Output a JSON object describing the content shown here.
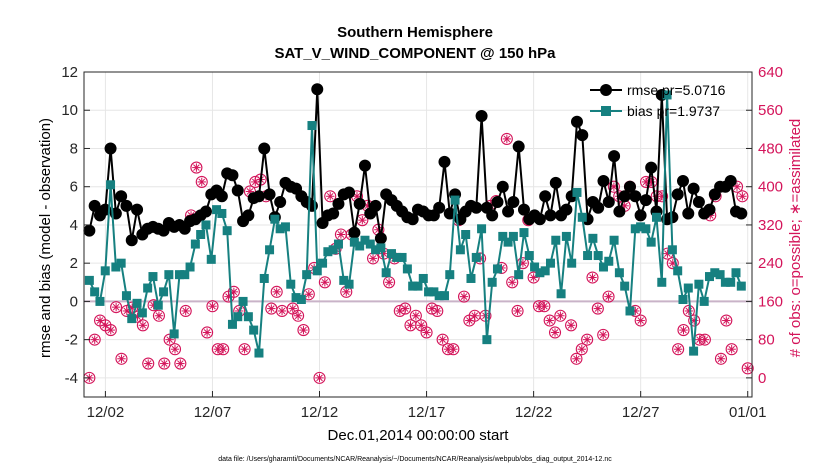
{
  "chart_data": {
    "type": "line",
    "title": [
      "Southern Hemisphere",
      "SAT_V_WIND_COMPONENT @ 150 hPa"
    ],
    "xlabel": "Dec.01,2014 00:00:00 start",
    "ylabel": "rmse and bias (model - observation)",
    "y2label": "# of obs: o=possible; ∗=assimilated",
    "footer": "data file: /Users/gharamti/Documents/NCAR/Reanalysis/~/Documents/NCAR/Reanalysis/webpub/obs_diag_output_2014-12.nc",
    "x_ticks": [
      "12/02",
      "12/07",
      "12/12",
      "12/17",
      "12/22",
      "12/27",
      "01/01"
    ],
    "x_tick_days": [
      2,
      7,
      12,
      17,
      22,
      27,
      32
    ],
    "xlim_days": [
      1.0,
      32.2
    ],
    "ylim": [
      -5,
      12
    ],
    "yticks": [
      -4,
      -2,
      0,
      2,
      4,
      6,
      8,
      10,
      12
    ],
    "y2lim": [
      -40,
      640
    ],
    "y2ticks": [
      0,
      80,
      160,
      240,
      320,
      400,
      480,
      560,
      640
    ],
    "grid": true,
    "zero_line": 0,
    "legend_position": "top-right",
    "colors": {
      "rmse": "#000000",
      "bias": "#168080",
      "obs": "#d4145a",
      "axis_right": "#d4145a",
      "zero_line": "#c9b3c8"
    },
    "series": [
      {
        "name": "rmse pr=5.0716",
        "axis": "left",
        "values": [
          3.7,
          5.0,
          4.5,
          4.8,
          8.0,
          4.6,
          5.5,
          5.0,
          3.2,
          4.8,
          3.5,
          3.8,
          3.9,
          3.8,
          3.7,
          4.1,
          3.9,
          4.0,
          3.8,
          4.2,
          4.3,
          4.5,
          4.7,
          5.6,
          5.8,
          5.5,
          6.7,
          6.6,
          5.8,
          4.2,
          4.5,
          5.4,
          5.5,
          8.0,
          5.6,
          4.4,
          5.2,
          6.2,
          6.0,
          5.9,
          5.5,
          5.2,
          5.0,
          11.1,
          4.1,
          4.5,
          4.6,
          5.1,
          5.6,
          5.7,
          3.6,
          5.1,
          7.1,
          4.6,
          5.0,
          3.3,
          5.6,
          5.3,
          5.0,
          4.7,
          4.4,
          4.3,
          4.8,
          4.7,
          4.5,
          4.5,
          4.9,
          7.3,
          4.6,
          5.6,
          4.3,
          4.7,
          5.0,
          4.9,
          9.7,
          4.9,
          4.5,
          5.2,
          6.0,
          4.7,
          5.2,
          8.1,
          4.8,
          4.3,
          4.5,
          4.3,
          5.5,
          4.5,
          6.2,
          4.5,
          4.8,
          5.5,
          9.4,
          8.7,
          4.3,
          5.2,
          4.9,
          6.3,
          5.2,
          7.6,
          4.7,
          5.5,
          6.0,
          5.5,
          4.5,
          5.3,
          7.0,
          4.7,
          10.8,
          4.3,
          4.4,
          5.6,
          6.3,
          4.6,
          5.9,
          5.2,
          4.6,
          4.8,
          5.6,
          6.0,
          6.0,
          6.3,
          4.7,
          4.6
        ]
      },
      {
        "name": "bias pr=1.9737",
        "axis": "left",
        "values": [
          1.1,
          0.5,
          0.0,
          1.6,
          6.1,
          1.8,
          2.0,
          0.3,
          -0.9,
          -0.1,
          -0.6,
          0.7,
          1.3,
          -0.2,
          0.5,
          1.4,
          -1.7,
          1.4,
          1.4,
          1.8,
          3.0,
          3.5,
          4.0,
          2.2,
          4.8,
          4.6,
          3.7,
          -1.2,
          -0.8,
          0.0,
          -0.8,
          -1.5,
          -2.7,
          1.2,
          2.7,
          4.3,
          3.8,
          3.9,
          0.9,
          0.2,
          0.1,
          1.4,
          9.2,
          1.6,
          2.0,
          2.6,
          2.7,
          3.0,
          1.1,
          0.9,
          3.1,
          2.9,
          3.2,
          3.0,
          2.7,
          2.8,
          1.5,
          2.5,
          2.3,
          2.3,
          1.7,
          0.8,
          0.8,
          1.2,
          0.5,
          0.5,
          0.3,
          0.3,
          1.4,
          5.3,
          2.7,
          3.5,
          1.2,
          2.3,
          3.8,
          -2.0,
          1.0,
          1.7,
          3.4,
          3.1,
          3.4,
          1.4,
          3.6,
          2.4,
          1.8,
          1.5,
          1.6,
          2.0,
          3.2,
          0.4,
          3.4,
          2.0,
          5.7,
          4.4,
          2.4,
          3.3,
          2.4,
          1.8,
          2.1,
          3.2,
          1.5,
          0.8,
          -0.5,
          3.8,
          3.9,
          3.8,
          3.1,
          4.4,
          1.0,
          10.8,
          2.7,
          1.6,
          0.1,
          0.7,
          -2.6,
          0.9,
          0.0,
          1.3,
          1.5,
          1.4,
          1.0,
          1.0,
          1.5,
          0.8
        ]
      },
      {
        "name": "obs possible",
        "axis": "right",
        "marker": "circle",
        "points": [
          [
            1.25,
            0
          ],
          [
            1.5,
            80
          ],
          [
            1.75,
            120
          ],
          [
            2.0,
            110
          ],
          [
            2.25,
            100
          ],
          [
            2.5,
            148
          ],
          [
            2.75,
            40
          ],
          [
            3.0,
            140
          ],
          [
            3.25,
            147
          ],
          [
            3.5,
            128
          ],
          [
            3.75,
            110
          ],
          [
            4.0,
            30
          ],
          [
            4.25,
            152
          ],
          [
            4.5,
            130
          ],
          [
            4.75,
            30
          ],
          [
            5.0,
            80
          ],
          [
            5.25,
            60
          ],
          [
            5.5,
            30
          ],
          [
            5.75,
            140
          ],
          [
            6.0,
            340
          ],
          [
            6.25,
            440
          ],
          [
            6.5,
            410
          ],
          [
            6.75,
            95
          ],
          [
            7.0,
            150
          ],
          [
            7.25,
            60
          ],
          [
            7.5,
            60
          ],
          [
            7.75,
            170
          ],
          [
            8.0,
            180
          ],
          [
            8.25,
            140
          ],
          [
            8.5,
            60
          ],
          [
            8.75,
            390
          ],
          [
            9.0,
            410
          ],
          [
            9.25,
            415
          ],
          [
            9.5,
            380
          ],
          [
            9.75,
            145
          ],
          [
            10.0,
            180
          ],
          [
            10.25,
            140
          ],
          [
            10.75,
            145
          ],
          [
            11.0,
            130
          ],
          [
            11.25,
            100
          ],
          [
            11.5,
            175
          ],
          [
            11.75,
            230
          ],
          [
            12.0,
            0
          ],
          [
            12.25,
            200
          ],
          [
            12.5,
            380
          ],
          [
            12.75,
            270
          ],
          [
            13.0,
            300
          ],
          [
            13.25,
            180
          ],
          [
            13.5,
            300
          ],
          [
            13.75,
            380
          ],
          [
            14.0,
            330
          ],
          [
            14.25,
            360
          ],
          [
            14.5,
            250
          ],
          [
            14.75,
            310
          ],
          [
            15.0,
            260
          ],
          [
            15.25,
            200
          ],
          [
            15.5,
            250
          ],
          [
            15.75,
            140
          ],
          [
            16.0,
            145
          ],
          [
            16.25,
            110
          ],
          [
            16.5,
            130
          ],
          [
            16.75,
            110
          ],
          [
            17.0,
            95
          ],
          [
            17.25,
            145
          ],
          [
            17.5,
            140
          ],
          [
            17.75,
            80
          ],
          [
            18.0,
            60
          ],
          [
            18.25,
            60
          ],
          [
            18.5,
            330
          ],
          [
            18.75,
            170
          ],
          [
            19.0,
            120
          ],
          [
            19.25,
            130
          ],
          [
            19.5,
            250
          ],
          [
            19.75,
            130
          ],
          [
            20.0,
            360
          ],
          [
            20.25,
            370
          ],
          [
            20.5,
            230
          ],
          [
            20.75,
            500
          ],
          [
            21.0,
            200
          ],
          [
            21.25,
            140
          ],
          [
            21.5,
            240
          ],
          [
            21.75,
            330
          ],
          [
            22.0,
            210
          ],
          [
            22.25,
            150
          ],
          [
            22.5,
            150
          ],
          [
            22.75,
            120
          ],
          [
            23.0,
            95
          ],
          [
            23.25,
            130
          ],
          [
            23.75,
            110
          ],
          [
            24.0,
            40
          ],
          [
            24.25,
            60
          ],
          [
            24.5,
            80
          ],
          [
            24.75,
            210
          ],
          [
            25.0,
            145
          ],
          [
            25.25,
            90
          ],
          [
            25.5,
            170
          ],
          [
            25.75,
            400
          ],
          [
            26.0,
            380
          ],
          [
            26.25,
            360
          ],
          [
            26.5,
            400
          ],
          [
            26.75,
            140
          ],
          [
            27.0,
            120
          ],
          [
            27.25,
            410
          ],
          [
            27.5,
            410
          ],
          [
            27.75,
            380
          ],
          [
            28.0,
            380
          ],
          [
            28.25,
            260
          ],
          [
            28.5,
            240
          ],
          [
            28.75,
            60
          ],
          [
            29.0,
            100
          ],
          [
            29.25,
            140
          ],
          [
            29.5,
            120
          ],
          [
            29.75,
            80
          ],
          [
            30.0,
            80
          ],
          [
            30.25,
            340
          ],
          [
            30.5,
            380
          ],
          [
            30.75,
            40
          ],
          [
            31.0,
            120
          ],
          [
            31.25,
            60
          ],
          [
            31.5,
            400
          ],
          [
            31.75,
            380
          ],
          [
            32.0,
            20
          ]
        ]
      },
      {
        "name": "obs assimilated",
        "axis": "right",
        "marker": "asterisk",
        "same_as": "obs possible"
      }
    ]
  }
}
